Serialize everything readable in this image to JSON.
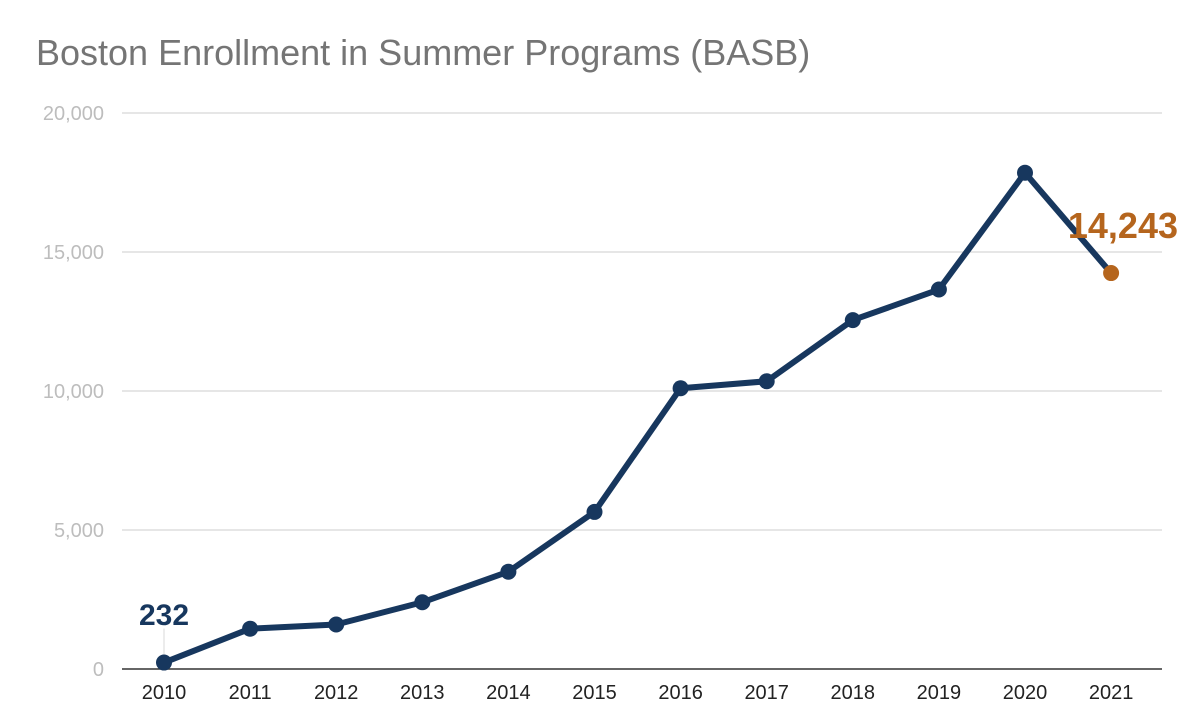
{
  "chart_data": {
    "type": "line",
    "title": "Boston Enrollment in Summer Programs (BASB)",
    "xlabel": "",
    "ylabel": "",
    "categories": [
      "2010",
      "2011",
      "2012",
      "2013",
      "2014",
      "2015",
      "2016",
      "2017",
      "2018",
      "2019",
      "2020",
      "2021"
    ],
    "values": [
      232,
      1450,
      1600,
      2400,
      3500,
      5650,
      10100,
      10350,
      12550,
      13650,
      17850,
      14243
    ],
    "ylim": [
      0,
      20000
    ],
    "yticks": [
      0,
      5000,
      10000,
      15000,
      20000
    ],
    "ytick_labels": [
      "0",
      "5,000",
      "10,000",
      "15,000",
      "20,000"
    ],
    "grid": true,
    "legend": "none",
    "series_color": "#17375e",
    "highlight_color": "#b5651d",
    "annotations": [
      {
        "index": 0,
        "text": "232",
        "color": "#17375e"
      },
      {
        "index": 11,
        "text": "14,243",
        "color": "#b5651d"
      }
    ]
  }
}
